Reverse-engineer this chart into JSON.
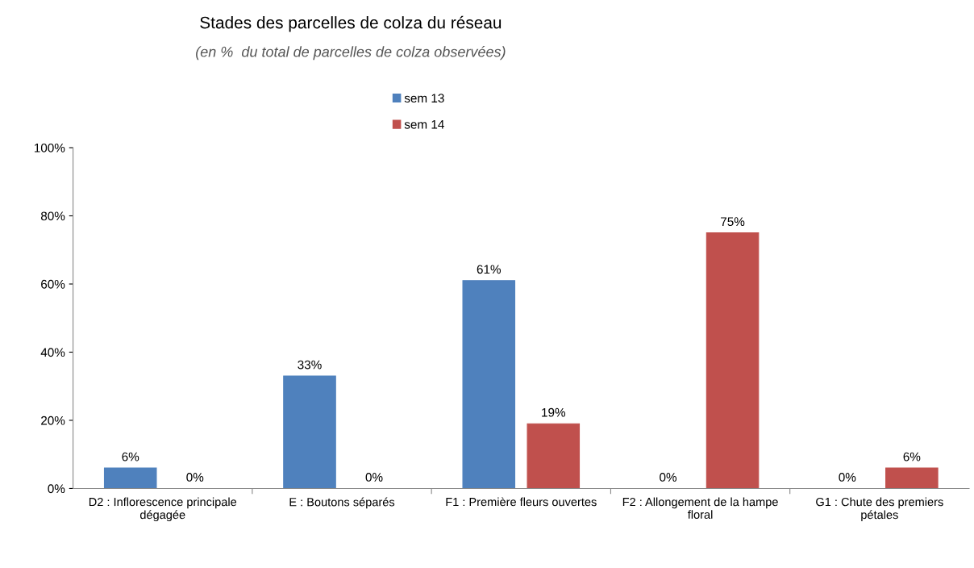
{
  "chart_data": {
    "type": "bar",
    "title": "Stades des parcelles de colza du réseau",
    "subtitle": "(en %  du total de parcelles de colza observées)",
    "categories": [
      "D2 : Inflorescence principale\ndégagée",
      "E : Boutons séparés",
      "F1 : Première fleurs ouvertes",
      "F2 : Allongement de la hampe\nfloral",
      "G1 : Chute des premiers\npétales"
    ],
    "series": [
      {
        "name": "sem 13",
        "color": "#4f81bd",
        "values": [
          6,
          33,
          61,
          0,
          0
        ],
        "value_labels": [
          "6%",
          "33%",
          "61%",
          "0%",
          "0%"
        ]
      },
      {
        "name": "sem 14",
        "color": "#c0504d",
        "values": [
          0,
          0,
          19,
          75,
          6
        ],
        "value_labels": [
          "0%",
          "0%",
          "19%",
          "75%",
          "6%"
        ]
      }
    ],
    "ylim": [
      0,
      100
    ],
    "yticks": [
      {
        "value": 0,
        "label": "0%"
      },
      {
        "value": 20,
        "label": "20%"
      },
      {
        "value": 40,
        "label": "40%"
      },
      {
        "value": 60,
        "label": "60%"
      },
      {
        "value": 80,
        "label": "80%"
      },
      {
        "value": 100,
        "label": "100%"
      }
    ],
    "legend": "top",
    "grid": false
  }
}
